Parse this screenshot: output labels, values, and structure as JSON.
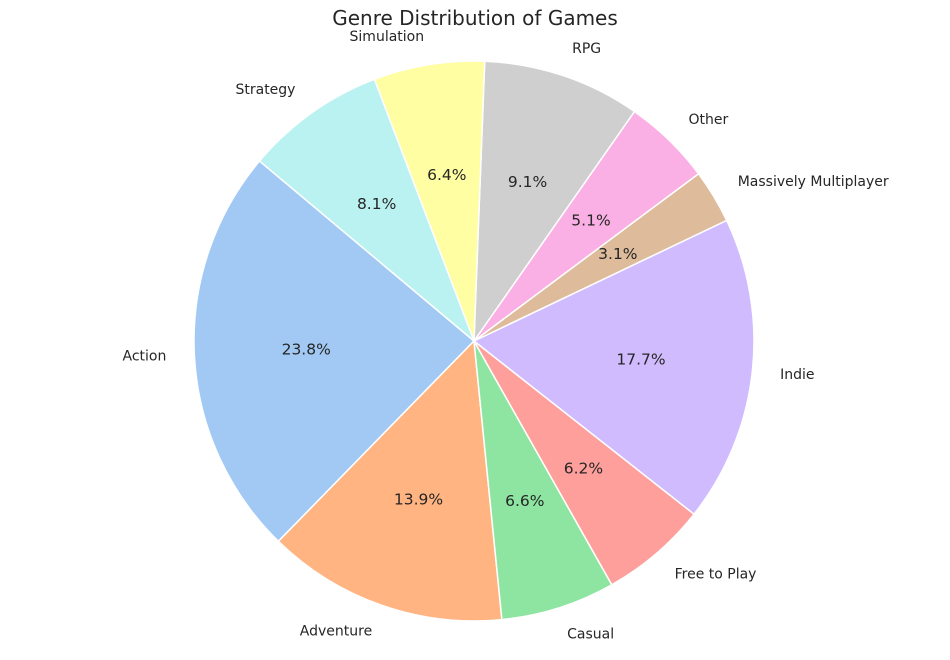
{
  "chart_data": {
    "type": "pie",
    "title": "Genre Distribution of Games",
    "start_angle_deg": 140,
    "direction": "counterclockwise",
    "slices": [
      {
        "label": "Action",
        "value": 23.8,
        "pct_label": "23.8%",
        "color": "#a1c9f4"
      },
      {
        "label": "Adventure",
        "value": 13.9,
        "pct_label": "13.9%",
        "color": "#ffb482"
      },
      {
        "label": "Casual",
        "value": 6.6,
        "pct_label": "6.6%",
        "color": "#8de5a1"
      },
      {
        "label": "Free to Play",
        "value": 6.2,
        "pct_label": "6.2%",
        "color": "#ff9f9b"
      },
      {
        "label": "Indie",
        "value": 17.7,
        "pct_label": "17.7%",
        "color": "#d0bbff"
      },
      {
        "label": "Massively Multiplayer",
        "value": 3.1,
        "pct_label": "3.1%",
        "color": "#debb9b"
      },
      {
        "label": "Other",
        "value": 5.1,
        "pct_label": "5.1%",
        "color": "#fab0e4"
      },
      {
        "label": "RPG",
        "value": 9.1,
        "pct_label": "9.1%",
        "color": "#cfcfcf"
      },
      {
        "label": "Simulation",
        "value": 6.4,
        "pct_label": "6.4%",
        "color": "#fffea3"
      },
      {
        "label": "Strategy",
        "value": 8.1,
        "pct_label": "8.1%",
        "color": "#b9f2f0"
      }
    ]
  }
}
